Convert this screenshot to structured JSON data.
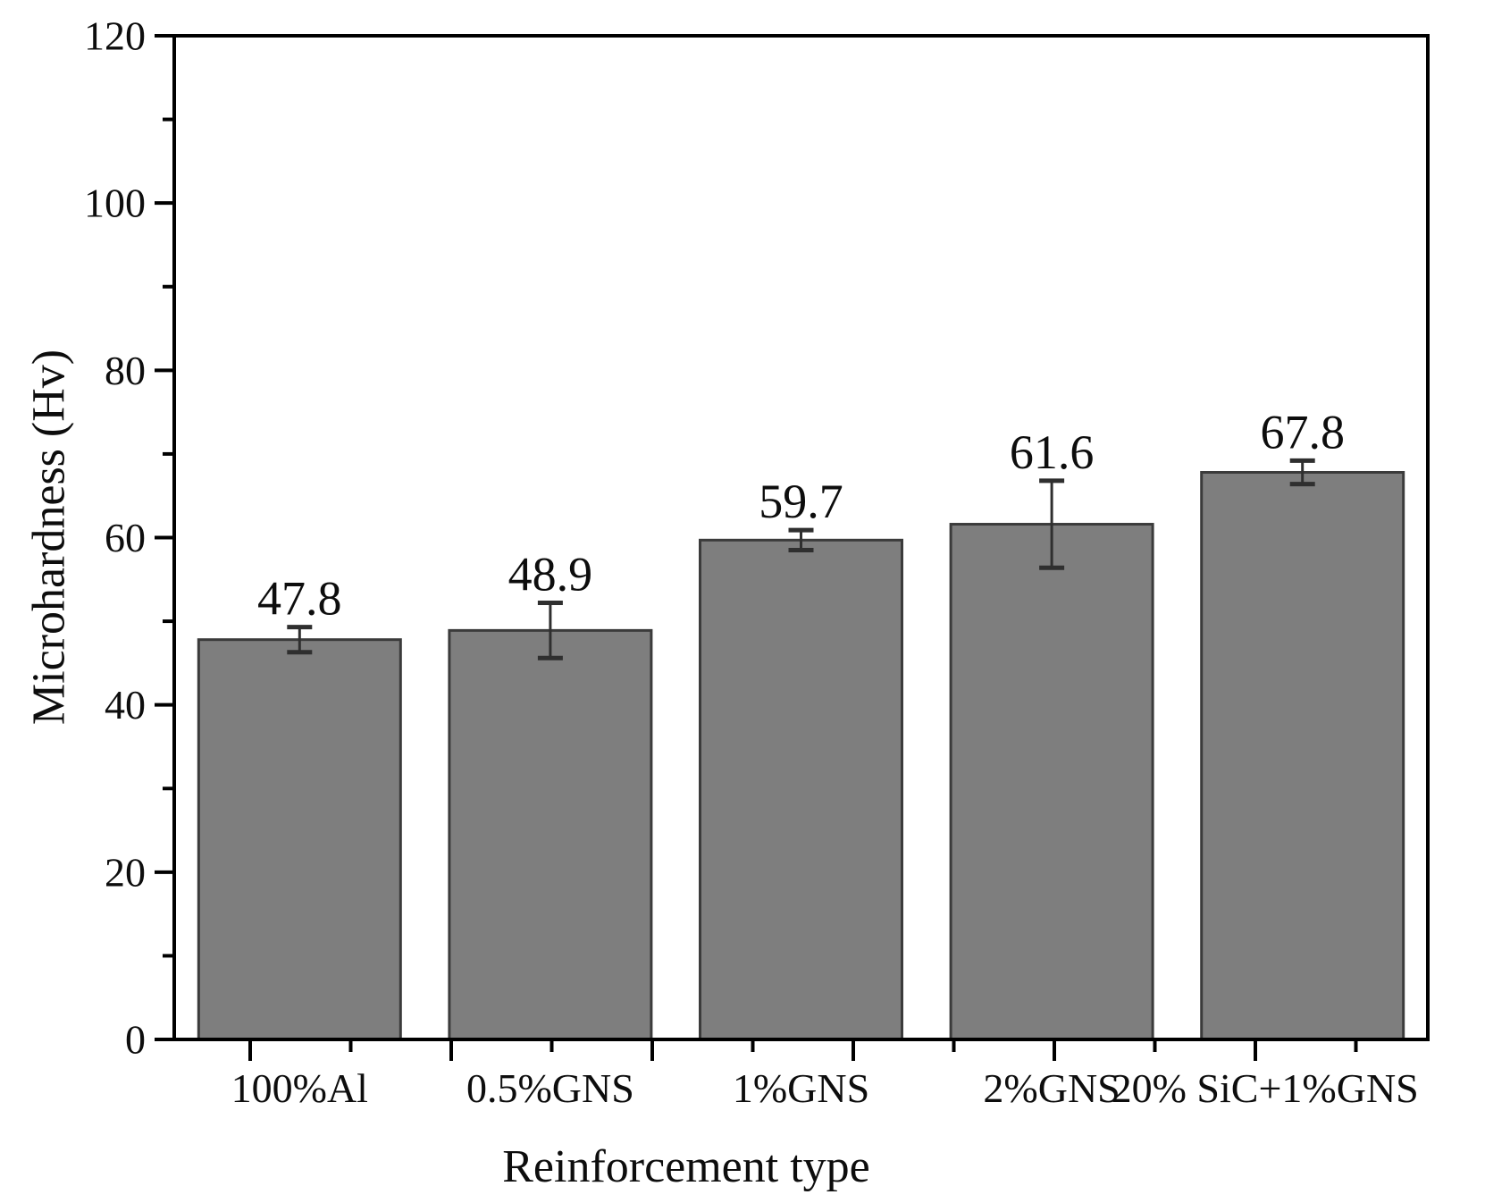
{
  "figure": {
    "background": "#ffffff"
  },
  "chart_data": {
    "type": "bar",
    "title": "",
    "xlabel": "Reinforcement type",
    "ylabel": "Microhardness (Hv)",
    "categories": [
      "100%Al",
      "0.5%GNS",
      "1%GNS",
      "2%GNS",
      "20% SiC+1%GNS"
    ],
    "values": [
      47.8,
      48.9,
      59.7,
      61.6,
      67.8
    ],
    "value_labels": [
      "47.8",
      "48.9",
      "59.7",
      "61.6",
      "67.8"
    ],
    "errors": [
      1.5,
      3.3,
      1.2,
      5.2,
      1.4
    ],
    "ylim": [
      0,
      120
    ],
    "y_major_ticks": [
      0,
      20,
      40,
      60,
      80,
      100,
      120
    ],
    "y_tick_labels": [
      "0",
      "20",
      "40",
      "60",
      "80",
      "100",
      "120"
    ],
    "y_minor_ticks": [
      10,
      30,
      50,
      70,
      90,
      110
    ],
    "grid": "off",
    "legend": "none",
    "colors": {
      "bar_fill": "#7e7e7e",
      "bar_stroke": "#3b3b3b",
      "error_bar": "#2f2f2f",
      "axis": "#000000",
      "text": "#0d0d0d",
      "background": "#ffffff"
    }
  }
}
